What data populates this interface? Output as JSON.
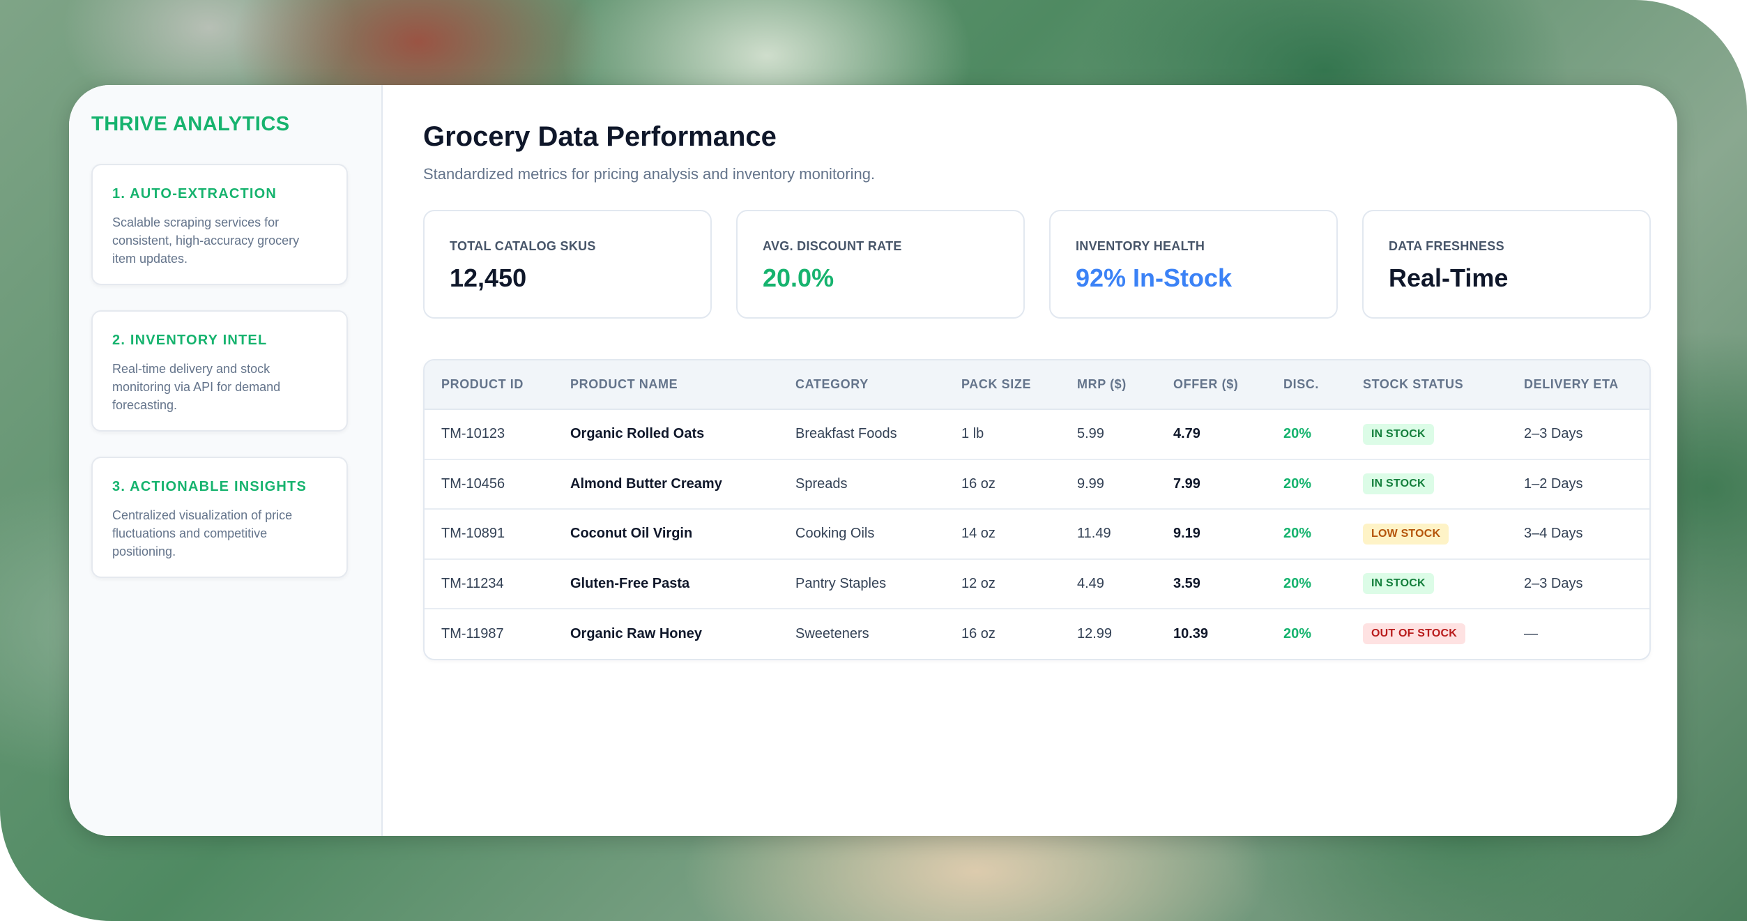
{
  "brand": "THRIVE ANALYTICS",
  "colors": {
    "accent_green": "#16b36e",
    "accent_blue": "#3b82f6",
    "in_stock_bg": "#dcfce7",
    "in_stock_fg": "#15803d",
    "low_stock_bg": "#fef3c7",
    "low_stock_fg": "#b45309",
    "out_stock_bg": "#fee2e2",
    "out_stock_fg": "#b91c1c"
  },
  "sidebar": {
    "steps": [
      {
        "title": "1. AUTO-EXTRACTION",
        "desc": "Scalable scraping services for consistent, high-accuracy grocery item updates."
      },
      {
        "title": "2. INVENTORY INTEL",
        "desc": "Real-time delivery and stock monitoring via API for demand forecasting."
      },
      {
        "title": "3. ACTIONABLE INSIGHTS",
        "desc": "Centralized visualization of price fluctuations and competitive positioning."
      }
    ]
  },
  "header": {
    "title": "Grocery Data Performance",
    "subtitle": "Standardized metrics for pricing analysis and inventory monitoring."
  },
  "kpis": [
    {
      "label": "TOTAL CATALOG SKUS",
      "value": "12,450",
      "color": "#0f172a"
    },
    {
      "label": "AVG. DISCOUNT RATE",
      "value": "20.0%",
      "color": "#16b36e"
    },
    {
      "label": "INVENTORY HEALTH",
      "value": "92% In-Stock",
      "color": "#3b82f6"
    },
    {
      "label": "DATA FRESHNESS",
      "value": "Real-Time",
      "color": "#0f172a"
    }
  ],
  "table": {
    "columns": [
      "PRODUCT ID",
      "PRODUCT NAME",
      "CATEGORY",
      "PACK SIZE",
      "MRP ($)",
      "OFFER ($)",
      "DISC.",
      "STOCK STATUS",
      "DELIVERY ETA"
    ],
    "rows": [
      {
        "id": "TM-10123",
        "name": "Organic Rolled Oats",
        "category": "Breakfast Foods",
        "pack": "1 lb",
        "mrp": "5.99",
        "offer": "4.79",
        "disc": "20%",
        "status": "IN STOCK",
        "status_kind": "in",
        "eta": "2–3 Days"
      },
      {
        "id": "TM-10456",
        "name": "Almond Butter Creamy",
        "category": "Spreads",
        "pack": "16 oz",
        "mrp": "9.99",
        "offer": "7.99",
        "disc": "20%",
        "status": "IN STOCK",
        "status_kind": "in",
        "eta": "1–2 Days"
      },
      {
        "id": "TM-10891",
        "name": "Coconut Oil Virgin",
        "category": "Cooking Oils",
        "pack": "14 oz",
        "mrp": "11.49",
        "offer": "9.19",
        "disc": "20%",
        "status": "LOW STOCK",
        "status_kind": "low",
        "eta": "3–4 Days"
      },
      {
        "id": "TM-11234",
        "name": "Gluten-Free Pasta",
        "category": "Pantry Staples",
        "pack": "12 oz",
        "mrp": "4.49",
        "offer": "3.59",
        "disc": "20%",
        "status": "IN STOCK",
        "status_kind": "in",
        "eta": "2–3 Days"
      },
      {
        "id": "TM-11987",
        "name": "Organic Raw Honey",
        "category": "Sweeteners",
        "pack": "16 oz",
        "mrp": "12.99",
        "offer": "10.39",
        "disc": "20%",
        "status": "OUT OF STOCK",
        "status_kind": "out",
        "eta": "—"
      }
    ]
  }
}
